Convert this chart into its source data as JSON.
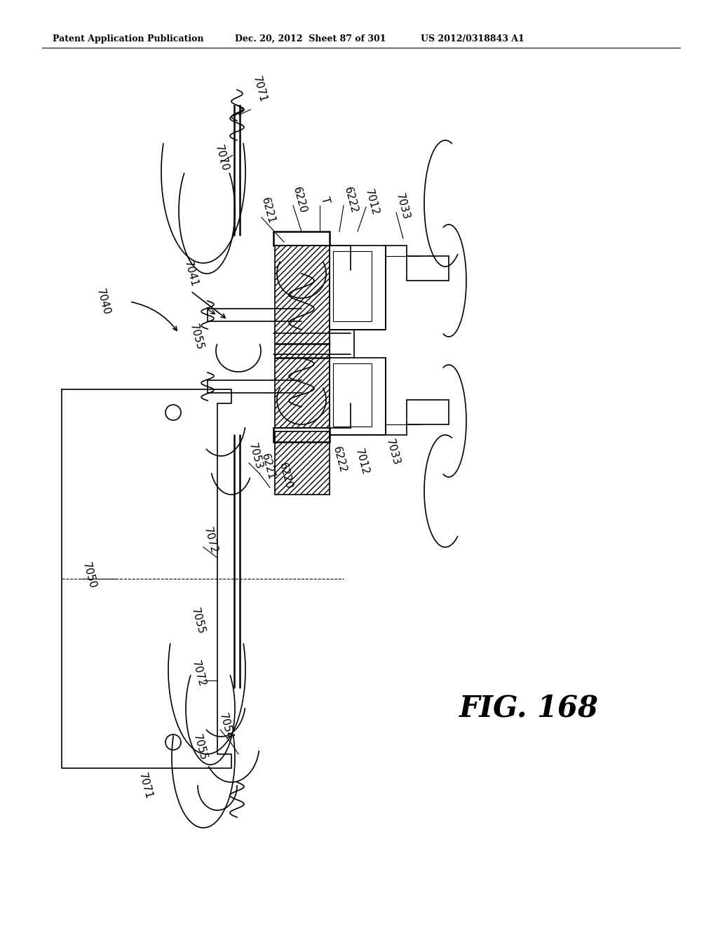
{
  "header_left": "Patent Application Publication",
  "header_center": "Dec. 20, 2012  Sheet 87 of 301",
  "header_right": "US 2012/0318843 A1",
  "figure_label": "FIG. 168",
  "bg_color": "#ffffff",
  "lc": "#000000",
  "fig_w": 1024,
  "fig_h": 1320
}
